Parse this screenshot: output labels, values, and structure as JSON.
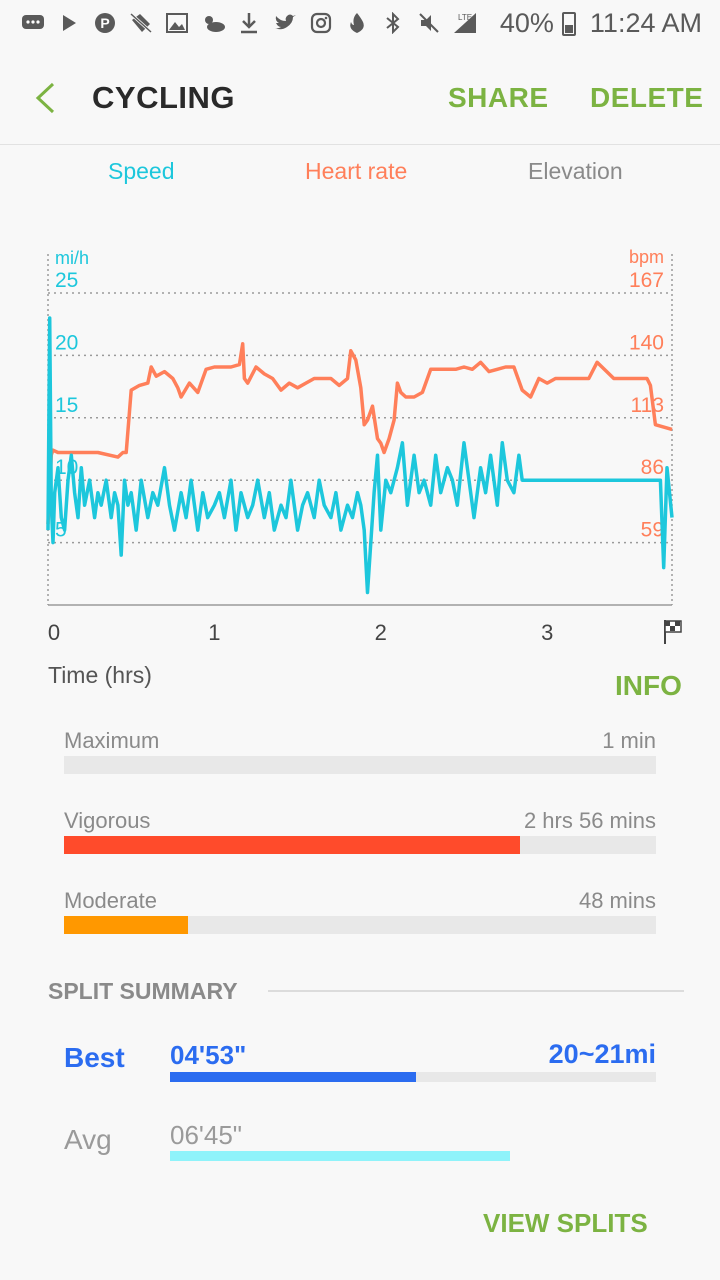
{
  "status_bar": {
    "icons": [
      "message-icon",
      "play-icon",
      "pinterest-icon",
      "tag-off-icon",
      "image-icon",
      "weather-icon",
      "download-icon",
      "twitter-icon",
      "instagram-icon",
      "tinder-icon",
      "bluetooth-icon",
      "mute-icon",
      "signal-icon"
    ],
    "network_label": "LTE",
    "battery": "40%",
    "time": "11:24 AM"
  },
  "header": {
    "title": "CYCLING",
    "share_label": "SHARE",
    "delete_label": "DELETE",
    "accent_color": "#7cb342"
  },
  "tabs": [
    {
      "label": "Speed",
      "color": "#1dc7dc"
    },
    {
      "label": "Heart rate",
      "color": "#ff7f5a"
    },
    {
      "label": "Elevation",
      "color": "#8a8a8a"
    }
  ],
  "chart_data": {
    "type": "line",
    "x_unit": "hrs",
    "xlabel": "Time (hrs)",
    "x_ticks": [
      "0",
      "1",
      "2",
      "3"
    ],
    "x_end_icon": "finish-flag-icon",
    "xlim": [
      0,
      3.75
    ],
    "left_axis": {
      "unit": "mi/h",
      "ticks": [
        "5",
        "10",
        "15",
        "20",
        "25"
      ],
      "tick_values": [
        5,
        10,
        15,
        20,
        25
      ],
      "ylim": [
        0,
        25
      ],
      "color": "#1dc7dc"
    },
    "right_axis": {
      "unit": "bpm",
      "ticks": [
        "59",
        "86",
        "113",
        "140",
        "167"
      ],
      "tick_values": [
        59,
        86,
        113,
        140,
        167
      ],
      "ylim": [
        32,
        167
      ],
      "color": "#ff7f5a"
    },
    "grid": true,
    "series": [
      {
        "axis": "right",
        "color": "#ff7f5a",
        "x": [
          0,
          0.02,
          0.03,
          0.06,
          0.15,
          0.3,
          0.42,
          0.45,
          0.47,
          0.5,
          0.55,
          0.6,
          0.62,
          0.65,
          0.7,
          0.75,
          0.78,
          0.8,
          0.85,
          0.9,
          0.95,
          1.0,
          1.05,
          1.1,
          1.15,
          1.17,
          1.18,
          1.2,
          1.25,
          1.3,
          1.35,
          1.4,
          1.45,
          1.5,
          1.55,
          1.6,
          1.65,
          1.7,
          1.75,
          1.8,
          1.82,
          1.85,
          1.88,
          1.9,
          1.92,
          1.95,
          1.98,
          2.0,
          2.02,
          2.05,
          2.08,
          2.1,
          2.12,
          2.15,
          2.2,
          2.25,
          2.3,
          2.35,
          2.4,
          2.45,
          2.5,
          2.55,
          2.6,
          2.65,
          2.7,
          2.75,
          2.8,
          2.85,
          2.9,
          2.95,
          3.0,
          3.05,
          3.1,
          3.15,
          3.2,
          3.25,
          3.3,
          3.4,
          3.5,
          3.55,
          3.58,
          3.6,
          3.62,
          3.65,
          3.75
        ],
        "values": [
          67,
          97,
          99,
          98,
          98,
          98,
          96,
          98,
          98,
          125,
          127,
          128,
          135,
          131,
          133,
          130,
          126,
          122,
          128,
          124,
          134,
          135,
          135,
          135,
          136,
          145,
          130,
          128,
          135,
          132,
          130,
          125,
          128,
          126,
          128,
          130,
          130,
          130,
          127,
          130,
          142,
          138,
          126,
          110,
          112,
          118,
          104,
          102,
          98,
          104,
          112,
          128,
          124,
          122,
          122,
          124,
          134,
          134,
          134,
          134,
          135,
          134,
          137,
          133,
          134,
          135,
          135,
          125,
          122,
          130,
          128,
          130,
          130,
          130,
          130,
          130,
          137,
          130,
          130,
          130,
          130,
          130,
          127,
          110,
          108
        ]
      },
      {
        "axis": "left",
        "color": "#1dc7dc",
        "x": [
          0,
          0.01,
          0.02,
          0.03,
          0.04,
          0.06,
          0.08,
          0.1,
          0.12,
          0.14,
          0.16,
          0.18,
          0.2,
          0.22,
          0.25,
          0.28,
          0.3,
          0.32,
          0.35,
          0.38,
          0.4,
          0.42,
          0.44,
          0.46,
          0.48,
          0.5,
          0.53,
          0.56,
          0.6,
          0.63,
          0.66,
          0.7,
          0.73,
          0.76,
          0.8,
          0.83,
          0.86,
          0.9,
          0.93,
          0.96,
          1.0,
          1.03,
          1.06,
          1.1,
          1.13,
          1.16,
          1.2,
          1.23,
          1.26,
          1.3,
          1.33,
          1.36,
          1.4,
          1.43,
          1.46,
          1.5,
          1.53,
          1.56,
          1.6,
          1.63,
          1.66,
          1.7,
          1.73,
          1.76,
          1.8,
          1.83,
          1.86,
          1.88,
          1.9,
          1.92,
          1.94,
          1.96,
          1.98,
          2.0,
          2.03,
          2.06,
          2.1,
          2.13,
          2.16,
          2.2,
          2.23,
          2.26,
          2.3,
          2.33,
          2.36,
          2.4,
          2.43,
          2.46,
          2.5,
          2.53,
          2.56,
          2.6,
          2.63,
          2.66,
          2.7,
          2.73,
          2.76,
          2.8,
          2.83,
          2.85,
          3.0,
          3.2,
          3.4,
          3.6,
          3.68,
          3.7,
          3.72,
          3.75
        ],
        "values": [
          6,
          23,
          8,
          5,
          9,
          11,
          7,
          6,
          10,
          12,
          9,
          7,
          11,
          8,
          10,
          7,
          9,
          8,
          10,
          7,
          9,
          8,
          4,
          10,
          8,
          9,
          6,
          10,
          7,
          9,
          8,
          11,
          8,
          6,
          9,
          7,
          10,
          6,
          9,
          7,
          8,
          9,
          7,
          10,
          6,
          9,
          7,
          8,
          10,
          7,
          9,
          6,
          8,
          7,
          10,
          6,
          8,
          9,
          7,
          10,
          8,
          7,
          9,
          6,
          8,
          7,
          9,
          8,
          6,
          1,
          5,
          9,
          12,
          6,
          10,
          9,
          11,
          13,
          8,
          12,
          9,
          10,
          8,
          12,
          9,
          11,
          10,
          8,
          13,
          10,
          7,
          11,
          9,
          12,
          8,
          13,
          10,
          9,
          12,
          10,
          10,
          10,
          10,
          10,
          10,
          3,
          11,
          7
        ]
      }
    ]
  },
  "info_label": "INFO",
  "zones": [
    {
      "label": "Maximum",
      "value": "1 min",
      "fraction": 0.0,
      "color": "#ff4b2b"
    },
    {
      "label": "Vigorous",
      "value": "2 hrs 56 mins",
      "fraction": 0.77,
      "color": "#ff4b2b"
    },
    {
      "label": "Moderate",
      "value": "48 mins",
      "fraction": 0.21,
      "color": "#ff9800"
    }
  ],
  "split_summary": {
    "title": "SPLIT SUMMARY",
    "best": {
      "label": "Best",
      "time": "04'53\"",
      "distance": "20~21mi",
      "fraction": 0.506,
      "color": "#2b6cf0"
    },
    "avg": {
      "label": "Avg",
      "time": "06'45\"",
      "fraction": 0.7,
      "color": "#8ff3fa"
    },
    "view_splits_label": "VIEW SPLITS"
  }
}
